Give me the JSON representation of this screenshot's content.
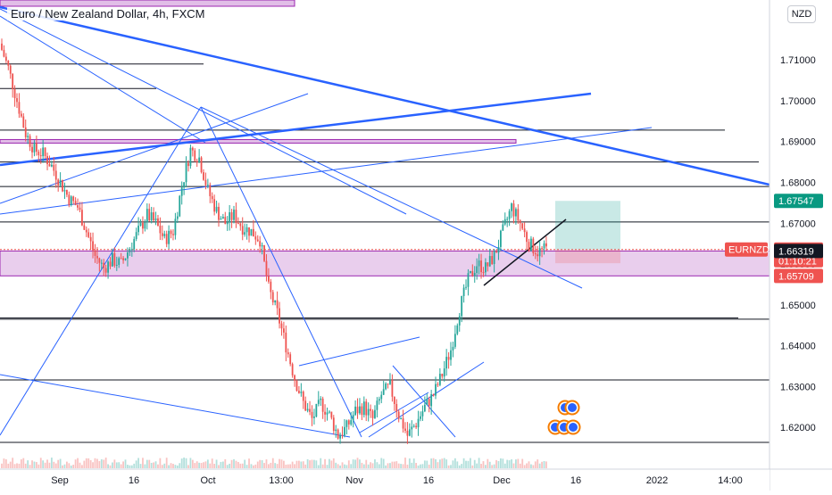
{
  "header": {
    "title": "Euro / New Zealand Dollar, 4h, FXCM",
    "currency": "NZD"
  },
  "colors": {
    "up": "#26a69a",
    "down": "#ef5350",
    "trend": "#2962ff",
    "zone": "#e1bee7",
    "zone_border": "#9c27b0",
    "last_price_tag": "#ef5350",
    "target_tag": "#089981",
    "current_tag": "#131722"
  },
  "chart_data": {
    "type": "candlestick",
    "title": "Euro / New Zealand Dollar, 4h, FXCM",
    "symbol": "EURNZD",
    "ylim": [
      1.6115,
      1.7225
    ],
    "y_ticks": [
      "1.71000",
      "1.70000",
      "1.69000",
      "1.68000",
      "1.67000",
      "1.66000",
      "1.65000",
      "1.64000",
      "1.63000",
      "1.62000"
    ],
    "x_ticks": [
      "Sep",
      "16",
      "Oct",
      "13:00",
      "Nov",
      "16",
      "Dec",
      "16",
      "2022",
      "14:00"
    ],
    "close_path": [
      [
        0,
        1.714
      ],
      [
        4,
        1.708
      ],
      [
        8,
        1.7
      ],
      [
        12,
        1.692
      ],
      [
        16,
        1.688
      ],
      [
        20,
        1.687
      ],
      [
        24,
        1.684
      ],
      [
        28,
        1.68
      ],
      [
        32,
        1.676
      ],
      [
        36,
        1.674
      ],
      [
        40,
        1.668
      ],
      [
        44,
        1.662
      ],
      [
        48,
        1.659
      ],
      [
        52,
        1.661
      ],
      [
        56,
        1.66
      ],
      [
        60,
        1.664
      ],
      [
        64,
        1.668
      ],
      [
        68,
        1.672
      ],
      [
        72,
        1.67
      ],
      [
        76,
        1.666
      ],
      [
        80,
        1.668
      ],
      [
        84,
        1.679
      ],
      [
        88,
        1.688
      ],
      [
        92,
        1.686
      ],
      [
        96,
        1.678
      ],
      [
        100,
        1.673
      ],
      [
        104,
        1.67
      ],
      [
        108,
        1.672
      ],
      [
        112,
        1.669
      ],
      [
        116,
        1.668
      ],
      [
        120,
        1.666
      ],
      [
        124,
        1.654
      ],
      [
        128,
        1.648
      ],
      [
        132,
        1.64
      ],
      [
        136,
        1.632
      ],
      [
        140,
        1.626
      ],
      [
        144,
        1.622
      ],
      [
        148,
        1.626
      ],
      [
        152,
        1.623
      ],
      [
        156,
        1.618
      ],
      [
        160,
        1.62
      ],
      [
        164,
        1.624
      ],
      [
        168,
        1.625
      ],
      [
        172,
        1.622
      ],
      [
        176,
        1.628
      ],
      [
        180,
        1.63
      ],
      [
        184,
        1.623
      ],
      [
        188,
        1.618
      ],
      [
        192,
        1.621
      ],
      [
        196,
        1.625
      ],
      [
        200,
        1.628
      ],
      [
        204,
        1.633
      ],
      [
        208,
        1.639
      ],
      [
        212,
        1.649
      ],
      [
        216,
        1.656
      ],
      [
        220,
        1.66
      ],
      [
        224,
        1.659
      ],
      [
        228,
        1.662
      ],
      [
        232,
        1.668
      ],
      [
        236,
        1.674
      ],
      [
        240,
        1.67
      ],
      [
        244,
        1.665
      ],
      [
        248,
        1.663
      ],
      [
        252,
        1.6636
      ]
    ],
    "horizontal_levels": [
      1.709,
      1.703,
      1.6928,
      1.685,
      1.679,
      1.6703,
      1.6468,
      1.6465,
      1.6316,
      1.6163
    ],
    "demand_zone": [
      1.6571,
      1.6632
    ],
    "upper_zone": [
      1.6898,
      1.6905
    ],
    "position": {
      "entry": 1.6636,
      "target": 1.67547,
      "stop": 1.6602
    },
    "price_tags": {
      "target": "1.67547",
      "last_symbol": "EURNZD",
      "last_price": "1.66356",
      "countdown": "01:10:21",
      "zone_top": "1.66319",
      "zone_bottom": "1.65709"
    }
  }
}
